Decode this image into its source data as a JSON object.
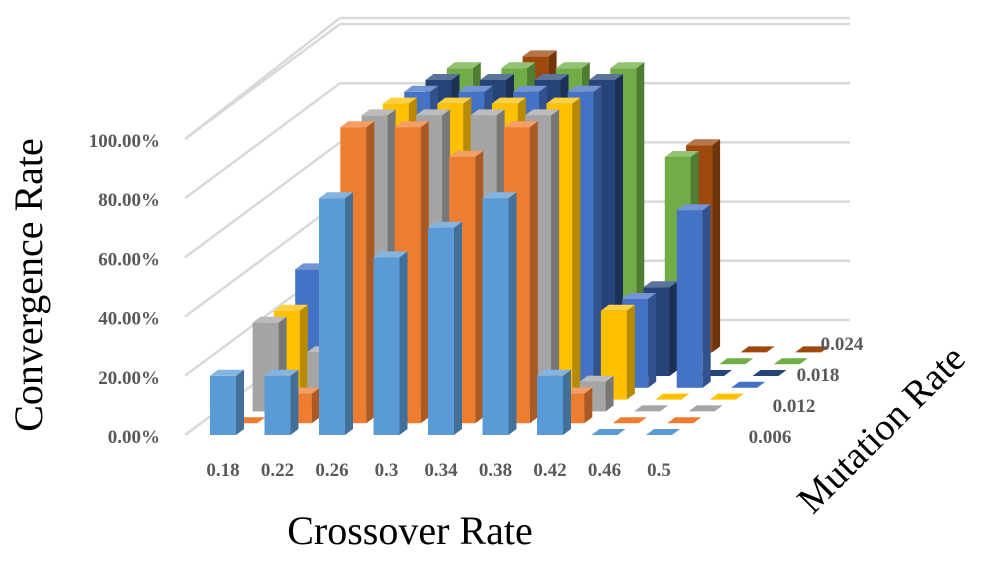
{
  "chart_data": {
    "type": "bar",
    "subtype": "3d-clustered-column",
    "title": "",
    "xlabel": "Crossover Rate",
    "ylabel": "Convergence Rate",
    "zlabel": "Mutation Rate",
    "categories": [
      "0.18",
      "0.22",
      "0.26",
      "0.3",
      "0.34",
      "0.38",
      "0.42",
      "0.46",
      "0.5"
    ],
    "depth_tick_labels": [
      "0.006",
      "0.012",
      "0.018",
      "0.024"
    ],
    "y_tick_labels": [
      "0.00%",
      "20.00%",
      "40.00%",
      "60.00%",
      "80.00%",
      "100.00%"
    ],
    "ylim": [
      0,
      100
    ],
    "grid": true,
    "legend": "none",
    "series": [
      {
        "color": "#5B9BD5",
        "values": [
          20,
          20,
          80,
          60,
          70,
          80,
          20,
          0,
          0
        ]
      },
      {
        "color": "#ED7D31",
        "values": [
          0,
          10,
          100,
          100,
          90,
          100,
          10,
          0,
          0
        ]
      },
      {
        "color": "#A5A5A5",
        "values": [
          30,
          20,
          100,
          100,
          100,
          100,
          10,
          0,
          0
        ]
      },
      {
        "color": "#FFC000",
        "values": [
          30,
          0,
          100,
          100,
          100,
          100,
          30,
          0,
          0
        ]
      },
      {
        "color": "#4472C4",
        "values": [
          40,
          0,
          100,
          100,
          100,
          100,
          30,
          60,
          0
        ]
      },
      {
        "color": "#264478",
        "values": [
          0,
          0,
          100,
          100,
          100,
          100,
          30,
          0,
          0
        ]
      },
      {
        "color": "#70AD47",
        "values": [
          0,
          0,
          100,
          100,
          100,
          100,
          70,
          0,
          0
        ]
      },
      {
        "color": "#9E480E",
        "values": [
          0,
          0,
          0,
          100,
          0,
          0,
          70,
          0,
          0
        ]
      }
    ]
  }
}
